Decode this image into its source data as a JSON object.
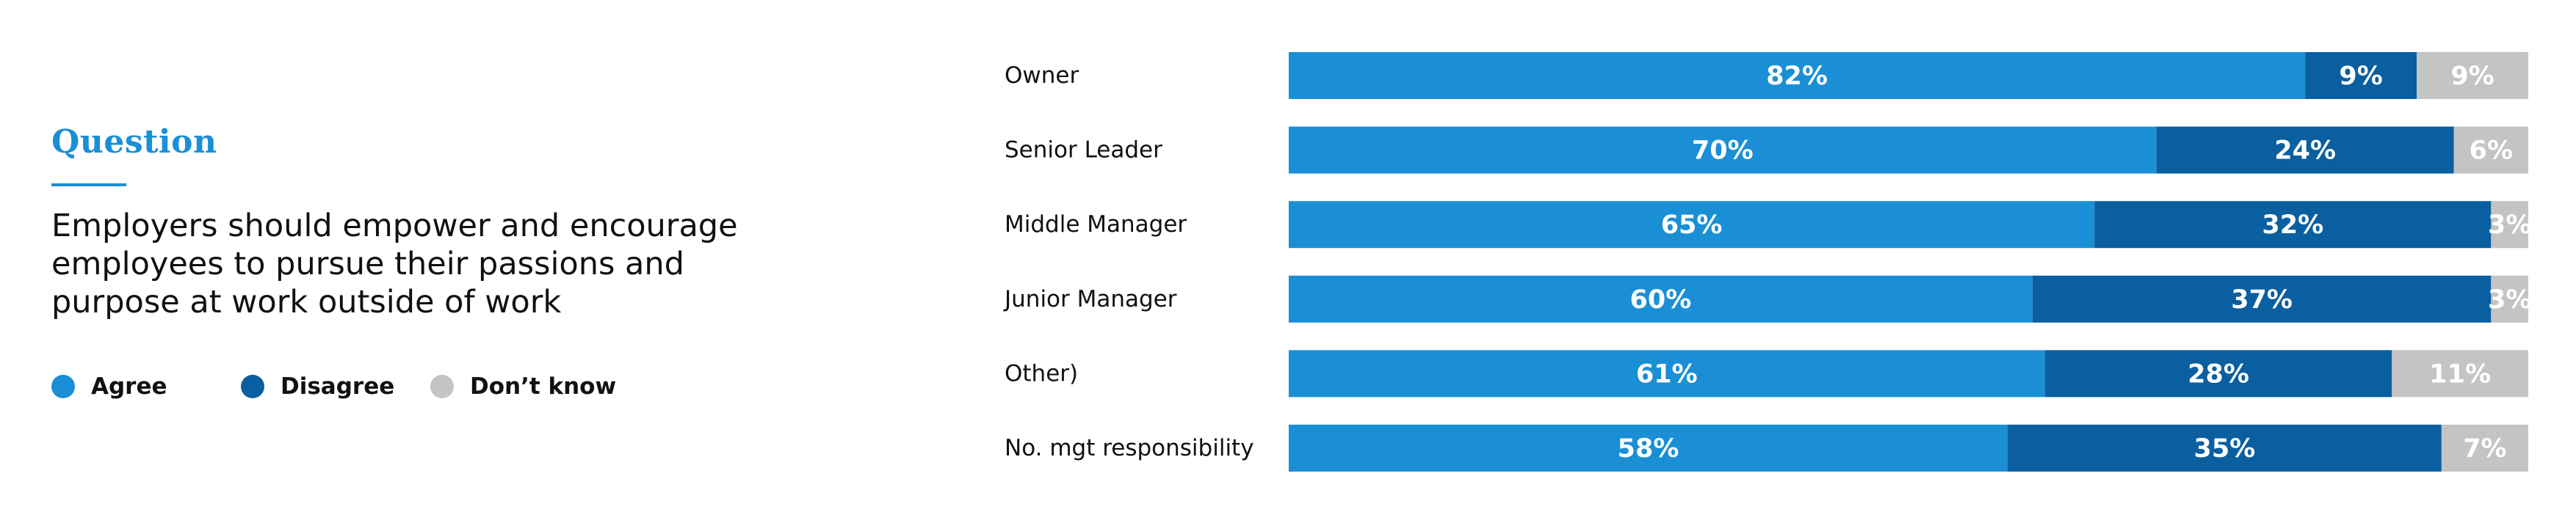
{
  "question": {
    "heading": "Question",
    "text": "Employers should empower and encourage employees to pursue their passions and purpose at work outside of work"
  },
  "legend": [
    {
      "label": "Agree",
      "color": "#1a8fd6"
    },
    {
      "label": "Disagree",
      "color": "#0a5fa0"
    },
    {
      "label": "Don’t know",
      "color": "#c4c4c4"
    }
  ],
  "chart_data": {
    "type": "bar",
    "orientation": "horizontal",
    "stacked": true,
    "value_suffix": "%",
    "categories": [
      "Owner",
      "Senior Leader",
      "Middle Manager",
      "Junior Manager",
      "Other)",
      "No. mgt responsibility"
    ],
    "series": [
      {
        "name": "Agree",
        "color": "#1a8fd6",
        "values": [
          82,
          70,
          65,
          60,
          61,
          58
        ]
      },
      {
        "name": "Disagree",
        "color": "#0a5fa0",
        "values": [
          9,
          24,
          32,
          37,
          28,
          35
        ]
      },
      {
        "name": "Don’t know",
        "color": "#c4c4c4",
        "values": [
          9,
          6,
          3,
          3,
          11,
          7
        ]
      }
    ],
    "legend_position": "left",
    "grid": false
  }
}
